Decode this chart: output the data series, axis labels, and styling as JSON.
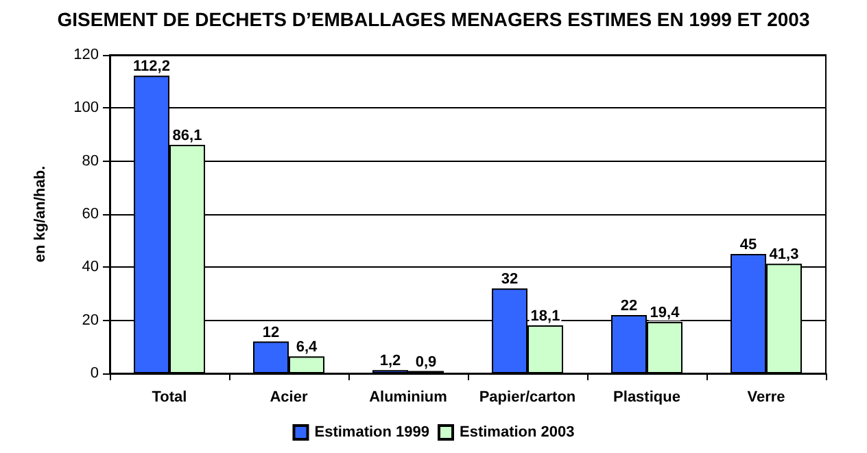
{
  "chart_data": {
    "type": "bar",
    "title": "GISEMENT DE DECHETS D’EMBALLAGES MENAGERS ESTIMES EN 1999 ET 2003",
    "ylabel": "en kg/an/hab.",
    "categories": [
      "Total",
      "Acier",
      "Aluminium",
      "Papier/carton",
      "Plastique",
      "Verre"
    ],
    "series": [
      {
        "name": "Estimation 1999",
        "color": "#3366ff",
        "values": [
          112.2,
          12,
          1.2,
          32,
          22,
          45
        ],
        "value_labels": [
          "112,2",
          "12",
          "1,2",
          "32",
          "22",
          "45"
        ]
      },
      {
        "name": "Estimation 2003",
        "color": "#ccffcc",
        "values": [
          86.1,
          6.4,
          0.9,
          18.1,
          19.4,
          41.3
        ],
        "value_labels": [
          "86,1",
          "6,4",
          "0,9",
          "18,1",
          "19,4",
          "41,3"
        ]
      }
    ],
    "ylim": [
      0,
      120
    ],
    "yticks": [
      0,
      20,
      40,
      60,
      80,
      100,
      120
    ],
    "grid": "y",
    "legend": "bottom"
  }
}
